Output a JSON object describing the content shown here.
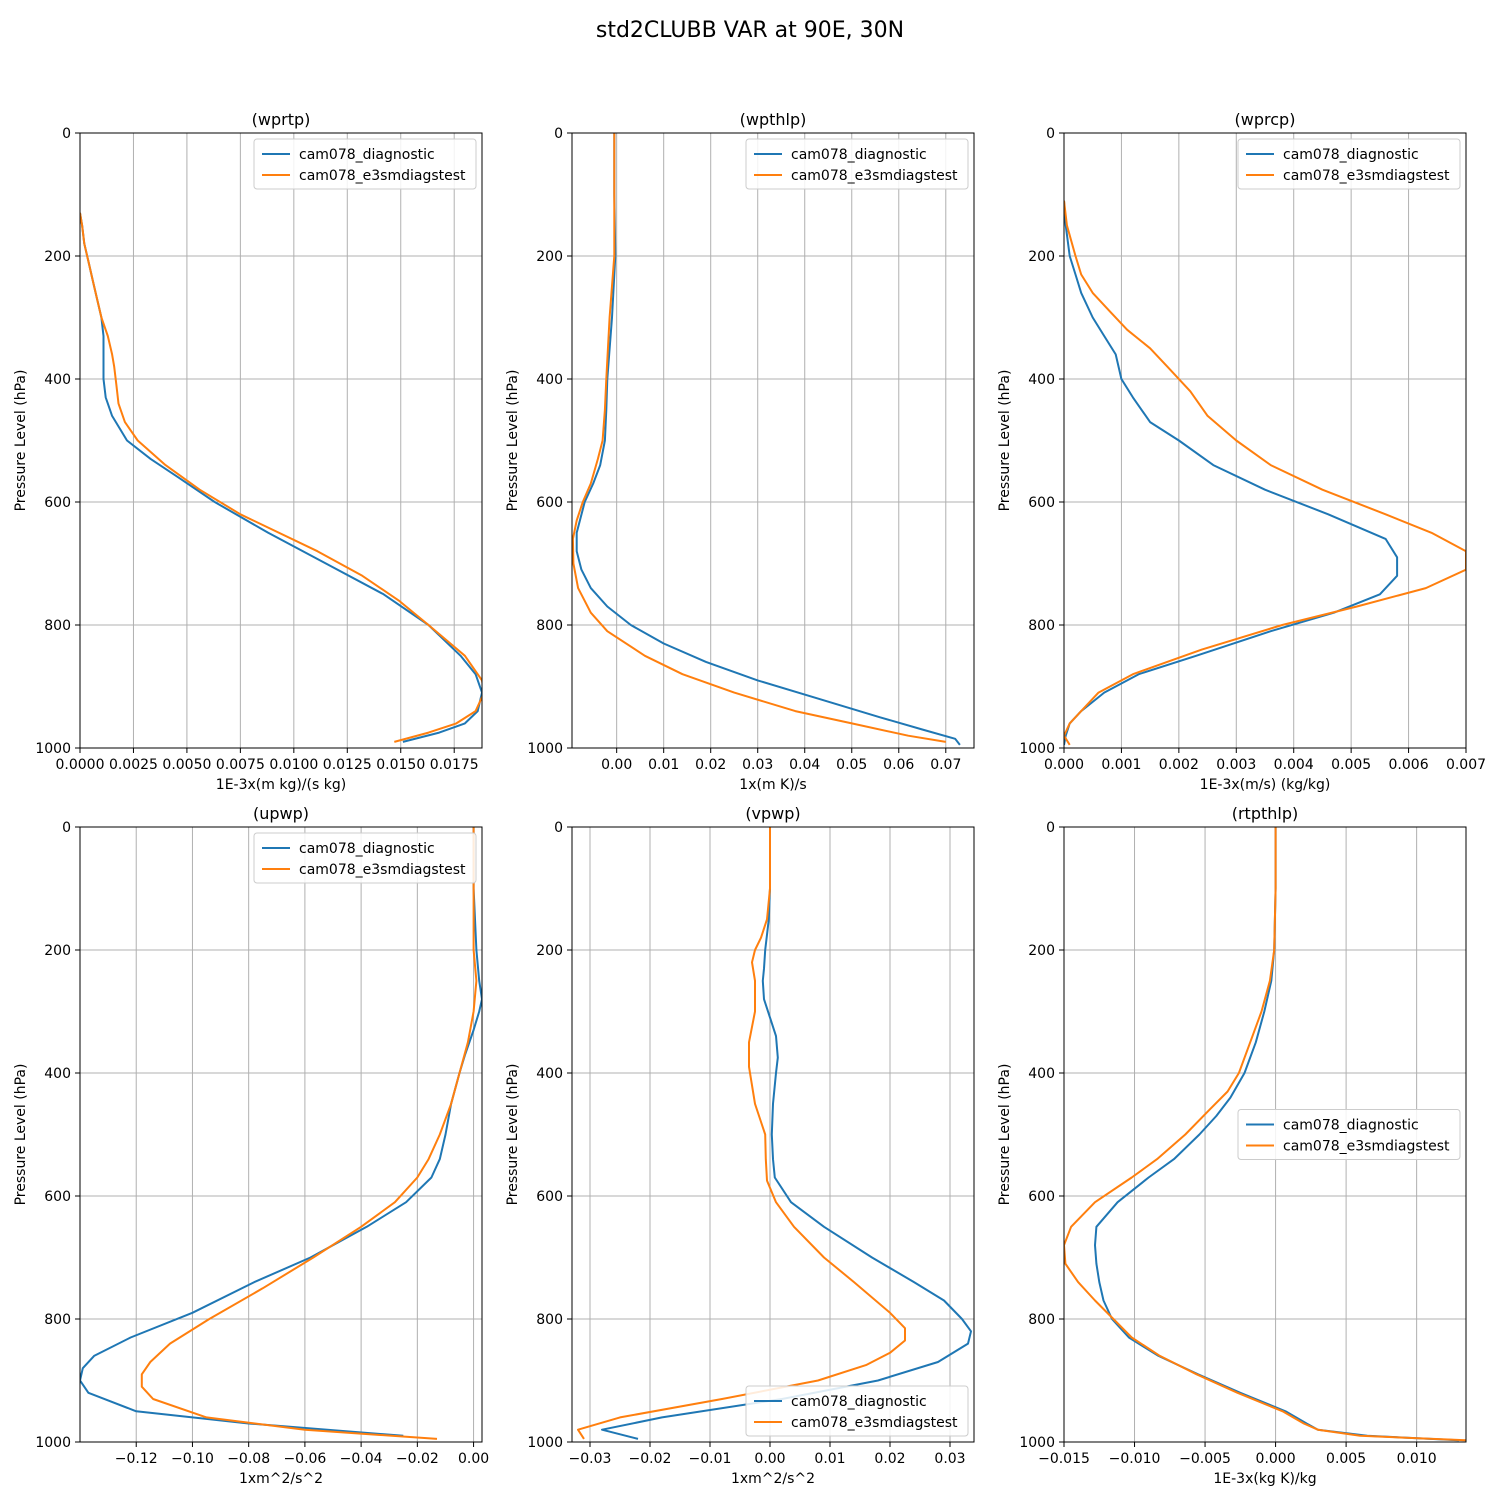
{
  "figure": {
    "title": "std2CLUBB VAR at 90E, 30N"
  },
  "series_names": [
    "cam078_diagnostic",
    "cam078_e3smdiagstest"
  ],
  "colors": {
    "diagnostic": "#1f77b4",
    "test": "#ff7f0e",
    "grid": "#b0b0b0"
  },
  "chart_data": [
    {
      "type": "line",
      "title": "(wprtp)",
      "xlabel": "1E-3x(m kg)/(s kg)",
      "ylabel": "Pressure Level (hPa)",
      "xlim": [
        0,
        0.0188
      ],
      "ylim": [
        1000,
        0
      ],
      "xticks": [
        0,
        0.0025,
        0.005,
        0.0075,
        0.01,
        0.0125,
        0.015,
        0.0175
      ],
      "xtick_labels": [
        "0.0000",
        "0.0025",
        "0.0050",
        "0.0075",
        "0.0100",
        "0.0125",
        "0.0150",
        "0.0175"
      ],
      "yticks": [
        0,
        200,
        400,
        600,
        800,
        1000
      ],
      "ytick_labels": [
        "0",
        "200",
        "400",
        "600",
        "800",
        "1000"
      ],
      "grid": true,
      "legend": "upper right",
      "series": [
        {
          "name": "cam078_diagnostic",
          "p": [
            130,
            150,
            180,
            210,
            240,
            270,
            300,
            330,
            350,
            380,
            400,
            430,
            460,
            500,
            530,
            560,
            600,
            650,
            700,
            750,
            800,
            850,
            880,
            910,
            940,
            960,
            975,
            990
          ],
          "values": [
            0,
            0.0001,
            0.0002,
            0.0004,
            0.0006,
            0.0008,
            0.001,
            0.0011,
            0.0011,
            0.0011,
            0.0011,
            0.0012,
            0.0015,
            0.0022,
            0.0033,
            0.0046,
            0.0063,
            0.0088,
            0.0115,
            0.0142,
            0.0163,
            0.0178,
            0.0185,
            0.0188,
            0.0186,
            0.018,
            0.0168,
            0.0151
          ]
        },
        {
          "name": "cam078_e3smdiagstest",
          "p": [
            130,
            150,
            180,
            210,
            240,
            270,
            300,
            330,
            360,
            380,
            410,
            440,
            470,
            500,
            540,
            580,
            620,
            680,
            720,
            760,
            800,
            850,
            890,
            910,
            940,
            960,
            975,
            990
          ],
          "values": [
            0,
            0.0001,
            0.0002,
            0.0004,
            0.0006,
            0.0008,
            0.001,
            0.0013,
            0.0015,
            0.0016,
            0.0017,
            0.0018,
            0.0021,
            0.0027,
            0.004,
            0.0056,
            0.0075,
            0.0111,
            0.0132,
            0.0149,
            0.0163,
            0.018,
            0.0188,
            0.0189,
            0.0185,
            0.0176,
            0.0163,
            0.0147
          ]
        }
      ]
    },
    {
      "type": "line",
      "title": "(wpthlp)",
      "xlabel": "1x(m K)/s",
      "ylabel": "Pressure Level (hPa)",
      "xlim": [
        -0.0095,
        0.076
      ],
      "ylim": [
        1000,
        0
      ],
      "xticks": [
        0,
        0.01,
        0.02,
        0.03,
        0.04,
        0.05,
        0.06,
        0.07
      ],
      "xtick_labels": [
        "0.00",
        "0.01",
        "0.02",
        "0.03",
        "0.04",
        "0.05",
        "0.06",
        "0.07"
      ],
      "yticks": [
        0,
        200,
        400,
        600,
        800,
        1000
      ],
      "ytick_labels": [
        "0",
        "200",
        "400",
        "600",
        "800",
        "1000"
      ],
      "grid": true,
      "legend": "upper right",
      "series": [
        {
          "name": "cam078_diagnostic",
          "p": [
            0,
            100,
            200,
            300,
            400,
            450,
            500,
            540,
            570,
            600,
            650,
            680,
            710,
            740,
            770,
            800,
            830,
            860,
            890,
            920,
            950,
            970,
            985,
            995
          ],
          "values": [
            -0.0005,
            -0.0005,
            -0.0003,
            -0.001,
            -0.002,
            -0.0022,
            -0.0025,
            -0.0035,
            -0.005,
            -0.0068,
            -0.0085,
            -0.0085,
            -0.0075,
            -0.0055,
            -0.002,
            0.003,
            0.01,
            0.019,
            0.03,
            0.043,
            0.056,
            0.065,
            0.072,
            0.073
          ]
        },
        {
          "name": "cam078_e3smdiagstest",
          "p": [
            0,
            100,
            200,
            300,
            400,
            450,
            500,
            530,
            570,
            600,
            630,
            660,
            700,
            740,
            780,
            810,
            850,
            880,
            910,
            940,
            960,
            980,
            990
          ],
          "values": [
            -0.0005,
            -0.0005,
            -0.0005,
            -0.0015,
            -0.0022,
            -0.0025,
            -0.003,
            -0.004,
            -0.0055,
            -0.0072,
            -0.0085,
            -0.0093,
            -0.0092,
            -0.0082,
            -0.0055,
            -0.002,
            0.006,
            0.014,
            0.025,
            0.038,
            0.05,
            0.062,
            0.07
          ]
        }
      ]
    },
    {
      "type": "line",
      "title": "(wprcp)",
      "xlabel": "1E-3x(m/s) (kg/kg)",
      "ylabel": "Pressure Level (hPa)",
      "xlim": [
        0,
        0.007
      ],
      "ylim": [
        1000,
        0
      ],
      "xticks": [
        0,
        0.001,
        0.002,
        0.003,
        0.004,
        0.005,
        0.006,
        0.007
      ],
      "xtick_labels": [
        "0.000",
        "0.001",
        "0.002",
        "0.003",
        "0.004",
        "0.005",
        "0.006",
        "0.007"
      ],
      "yticks": [
        0,
        200,
        400,
        600,
        800,
        1000
      ],
      "ytick_labels": [
        "0",
        "200",
        "400",
        "600",
        "800",
        "1000"
      ],
      "grid": true,
      "legend": "upper right",
      "series": [
        {
          "name": "cam078_diagnostic",
          "p": [
            110,
            150,
            200,
            230,
            260,
            300,
            330,
            360,
            400,
            430,
            470,
            500,
            540,
            580,
            620,
            660,
            690,
            720,
            750,
            780,
            810,
            850,
            880,
            910,
            940,
            960,
            980,
            995
          ],
          "values": [
            0,
            3e-05,
            0.0001,
            0.0002,
            0.0003,
            0.0005,
            0.0007,
            0.0009,
            0.001,
            0.0012,
            0.0015,
            0.002,
            0.0026,
            0.0035,
            0.0046,
            0.0056,
            0.0058,
            0.0058,
            0.0055,
            0.0047,
            0.0036,
            0.0023,
            0.0013,
            0.0007,
            0.0003,
            0.0001,
            3e-05,
            0
          ]
        },
        {
          "name": "cam078_e3smdiagstest",
          "p": [
            110,
            150,
            200,
            230,
            260,
            290,
            320,
            350,
            380,
            420,
            460,
            500,
            540,
            580,
            620,
            650,
            680,
            710,
            740,
            770,
            800,
            840,
            880,
            910,
            940,
            960,
            980,
            995
          ],
          "values": [
            0,
            5e-05,
            0.0002,
            0.0003,
            0.0005,
            0.0008,
            0.0011,
            0.0015,
            0.0018,
            0.0022,
            0.0025,
            0.003,
            0.0036,
            0.0045,
            0.0056,
            0.0064,
            0.007,
            0.007,
            0.0063,
            0.0051,
            0.0038,
            0.0024,
            0.0012,
            0.0006,
            0.0003,
            0.0001,
            0,
            0.0001
          ]
        }
      ]
    },
    {
      "type": "line",
      "title": "(upwp)",
      "xlabel": "1xm^2/s^2",
      "ylabel": "Pressure Level (hPa)",
      "xlim": [
        -0.14,
        0.003
      ],
      "ylim": [
        1000,
        0
      ],
      "xticks": [
        -0.12,
        -0.1,
        -0.08,
        -0.06,
        -0.04,
        -0.02,
        0
      ],
      "xtick_labels": [
        "−0.12",
        "−0.10",
        "−0.08",
        "−0.06",
        "−0.04",
        "−0.02",
        "0.00"
      ],
      "yticks": [
        0,
        200,
        400,
        600,
        800,
        1000
      ],
      "ytick_labels": [
        "0",
        "200",
        "400",
        "600",
        "800",
        "1000"
      ],
      "grid": true,
      "legend": "upper right",
      "series": [
        {
          "name": "cam078_diagnostic",
          "p": [
            0,
            100,
            200,
            250,
            280,
            300,
            330,
            370,
            400,
            450,
            500,
            540,
            570,
            610,
            650,
            700,
            740,
            790,
            830,
            860,
            880,
            900,
            920,
            950,
            970,
            990
          ],
          "values": [
            0,
            0,
            0.001,
            0.002,
            0.003,
            0.002,
            0,
            -0.003,
            -0.005,
            -0.008,
            -0.01,
            -0.012,
            -0.015,
            -0.024,
            -0.038,
            -0.058,
            -0.078,
            -0.1,
            -0.122,
            -0.135,
            -0.139,
            -0.14,
            -0.137,
            -0.12,
            -0.08,
            -0.025
          ]
        },
        {
          "name": "cam078_e3smdiagstest",
          "p": [
            0,
            100,
            200,
            250,
            300,
            350,
            400,
            450,
            500,
            540,
            570,
            610,
            650,
            700,
            750,
            800,
            840,
            870,
            890,
            910,
            930,
            960,
            980,
            995
          ],
          "values": [
            0,
            0,
            0,
            0.001,
            0,
            -0.002,
            -0.005,
            -0.008,
            -0.012,
            -0.016,
            -0.02,
            -0.028,
            -0.04,
            -0.057,
            -0.075,
            -0.094,
            -0.108,
            -0.115,
            -0.118,
            -0.118,
            -0.114,
            -0.095,
            -0.06,
            -0.013
          ]
        }
      ]
    },
    {
      "type": "line",
      "title": "(vpwp)",
      "xlabel": "1xm^2/s^2",
      "ylabel": "Pressure Level (hPa)",
      "xlim": [
        -0.033,
        0.034
      ],
      "ylim": [
        1000,
        0
      ],
      "xticks": [
        -0.03,
        -0.02,
        -0.01,
        0,
        0.01,
        0.02,
        0.03
      ],
      "xtick_labels": [
        "−0.03",
        "−0.02",
        "−0.01",
        "0.00",
        "0.01",
        "0.02",
        "0.03"
      ],
      "yticks": [
        0,
        200,
        400,
        600,
        800,
        1000
      ],
      "ytick_labels": [
        "0",
        "200",
        "400",
        "600",
        "800",
        "1000"
      ],
      "grid": true,
      "legend": "lower right",
      "series": [
        {
          "name": "cam078_diagnostic",
          "p": [
            0,
            100,
            150,
            200,
            230,
            250,
            280,
            310,
            340,
            375,
            400,
            450,
            500,
            540,
            570,
            610,
            650,
            700,
            740,
            770,
            800,
            820,
            840,
            870,
            900,
            930,
            960,
            980,
            995
          ],
          "values": [
            0,
            0,
            -0.0002,
            -0.0008,
            -0.001,
            -0.0012,
            -0.001,
            0,
            0.001,
            0.0013,
            0.001,
            0.0005,
            0.0003,
            0.0005,
            0.0008,
            0.0035,
            0.009,
            0.017,
            0.024,
            0.029,
            0.032,
            0.0335,
            0.033,
            0.028,
            0.018,
            0.002,
            -0.018,
            -0.028,
            -0.022
          ]
        },
        {
          "name": "cam078_e3smdiagstest",
          "p": [
            0,
            100,
            150,
            180,
            200,
            220,
            250,
            300,
            350,
            390,
            450,
            500,
            540,
            575,
            610,
            650,
            700,
            740,
            790,
            815,
            835,
            855,
            875,
            900,
            930,
            960,
            980,
            995
          ],
          "values": [
            0,
            0,
            -0.0005,
            -0.0015,
            -0.0025,
            -0.003,
            -0.0025,
            -0.0025,
            -0.0035,
            -0.0035,
            -0.0025,
            -0.0008,
            -0.0007,
            -0.0005,
            0.001,
            0.004,
            0.009,
            0.014,
            0.02,
            0.0225,
            0.0225,
            0.02,
            0.016,
            0.008,
            -0.008,
            -0.025,
            -0.032,
            -0.031
          ]
        }
      ]
    },
    {
      "type": "line",
      "title": "(rtpthlp)",
      "xlabel": "1E-3x(kg K)/kg",
      "ylabel": "Pressure Level (hPa)",
      "xlim": [
        -0.015,
        0.0135
      ],
      "ylim": [
        1000,
        0
      ],
      "xticks": [
        -0.015,
        -0.01,
        -0.005,
        0,
        0.005,
        0.01
      ],
      "xtick_labels": [
        "−0.015",
        "−0.010",
        "−0.005",
        "0.000",
        "0.005",
        "0.010"
      ],
      "yticks": [
        0,
        200,
        400,
        600,
        800,
        1000
      ],
      "ytick_labels": [
        "0",
        "200",
        "400",
        "600",
        "800",
        "1000"
      ],
      "grid": true,
      "legend": "center right",
      "series": [
        {
          "name": "cam078_diagnostic",
          "p": [
            0,
            100,
            200,
            250,
            300,
            350,
            400,
            440,
            470,
            500,
            540,
            570,
            610,
            650,
            680,
            710,
            740,
            770,
            800,
            830,
            860,
            890,
            920,
            950,
            970,
            980,
            990,
            997
          ],
          "values": [
            0,
            0,
            -0.0001,
            -0.0003,
            -0.0008,
            -0.0014,
            -0.0022,
            -0.0032,
            -0.0042,
            -0.0054,
            -0.0072,
            -0.009,
            -0.0112,
            -0.0127,
            -0.0128,
            -0.0127,
            -0.0125,
            -0.0122,
            -0.0116,
            -0.0104,
            -0.0083,
            -0.0055,
            -0.0025,
            0.0007,
            0.0022,
            0.003,
            0.0065,
            0.013
          ]
        },
        {
          "name": "cam078_e3smdiagstest",
          "p": [
            0,
            100,
            200,
            250,
            300,
            350,
            400,
            430,
            460,
            500,
            540,
            570,
            610,
            650,
            680,
            710,
            740,
            770,
            800,
            830,
            860,
            890,
            920,
            950,
            970,
            980,
            990,
            997
          ],
          "values": [
            0,
            0,
            -0.0001,
            -0.0004,
            -0.001,
            -0.0018,
            -0.0026,
            -0.0034,
            -0.0047,
            -0.0064,
            -0.0084,
            -0.0102,
            -0.0128,
            -0.0145,
            -0.015,
            -0.0149,
            -0.014,
            -0.0128,
            -0.0115,
            -0.0102,
            -0.0082,
            -0.0056,
            -0.0027,
            0.0005,
            0.002,
            0.003,
            0.006,
            0.0135
          ]
        }
      ]
    }
  ]
}
